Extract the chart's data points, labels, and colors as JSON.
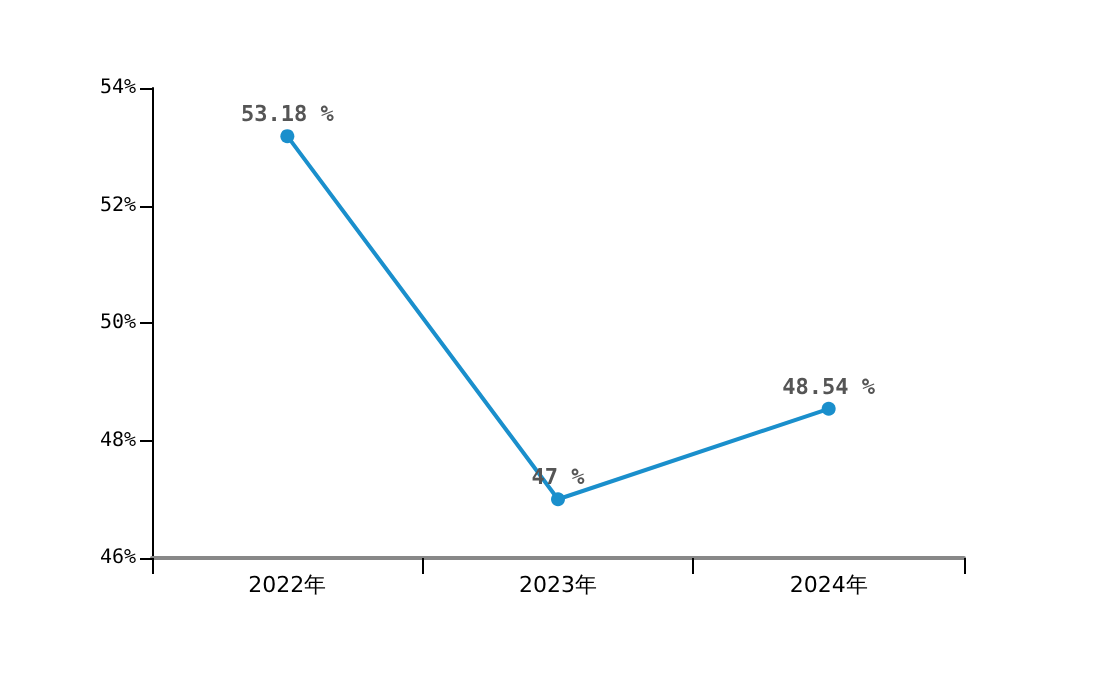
{
  "chart_data": {
    "type": "line",
    "categories": [
      "2022年",
      "2023年",
      "2024年"
    ],
    "series": [
      {
        "color": "#1a8fcc",
        "values": [
          53.18,
          47,
          48.54
        ],
        "value_labels": [
          "53.18 %",
          "47 %",
          "48.54 %"
        ]
      }
    ],
    "ylim": [
      46,
      54
    ],
    "yticks": [
      {
        "value": 46,
        "label": "46%"
      },
      {
        "value": 48,
        "label": "48%"
      },
      {
        "value": 50,
        "label": "50%"
      },
      {
        "value": 52,
        "label": "52%"
      },
      {
        "value": 54,
        "label": "54%"
      }
    ],
    "grid": false,
    "marker": "circle",
    "line_style": "solid"
  }
}
